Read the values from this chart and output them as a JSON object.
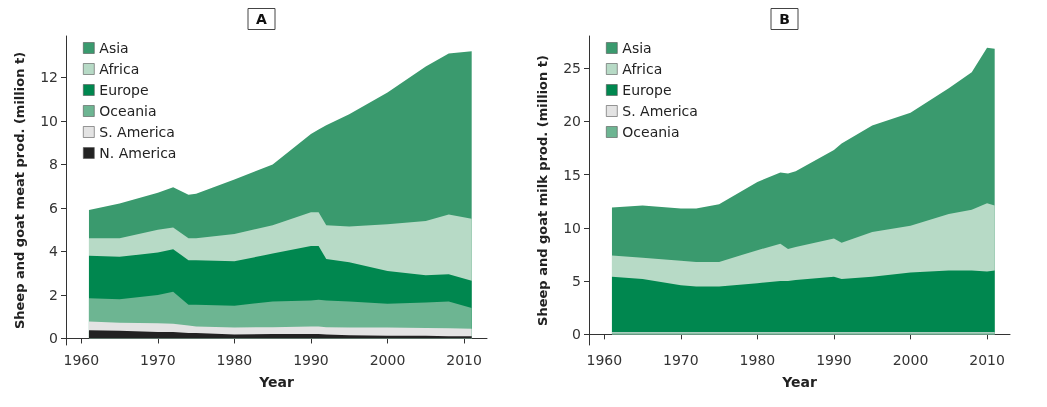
{
  "chart_data": [
    {
      "type": "area",
      "stacked": true,
      "title": "A",
      "xlabel": "Year",
      "ylabel": "Sheep and goat meat prod. (million t)",
      "legend": "top left",
      "grid": false,
      "xlim": [
        1958,
        2013
      ],
      "xticks": [
        1960,
        1970,
        1980,
        1990,
        2000,
        2010
      ],
      "ylim": [
        -0.3,
        13.9
      ],
      "yticks": [
        0,
        2,
        4,
        6,
        8,
        10,
        12
      ],
      "x": [
        1961,
        1965,
        1970,
        1972,
        1974,
        1975,
        1980,
        1985,
        1990,
        1991,
        1992,
        1995,
        2000,
        2005,
        2008,
        2011
      ],
      "series": [
        {
          "name": "N. America",
          "color": "#222222",
          "values": [
            0.38,
            0.35,
            0.3,
            0.3,
            0.25,
            0.25,
            0.18,
            0.2,
            0.2,
            0.2,
            0.18,
            0.15,
            0.12,
            0.12,
            0.1,
            0.1
          ]
        },
        {
          "name": "S. America",
          "color": "#e3e3e3",
          "values": [
            0.4,
            0.37,
            0.4,
            0.38,
            0.35,
            0.3,
            0.32,
            0.32,
            0.35,
            0.35,
            0.34,
            0.35,
            0.38,
            0.36,
            0.37,
            0.35
          ]
        },
        {
          "name": "Oceania",
          "color": "#6db592",
          "values": [
            1.07,
            1.08,
            1.3,
            1.47,
            0.95,
            1.0,
            1.0,
            1.18,
            1.2,
            1.23,
            1.23,
            1.2,
            1.1,
            1.17,
            1.23,
            0.95
          ]
        },
        {
          "name": "Europe",
          "color": "#00874f",
          "values": [
            1.95,
            1.95,
            1.95,
            1.95,
            2.05,
            2.05,
            2.05,
            2.2,
            2.5,
            2.47,
            1.9,
            1.8,
            1.5,
            1.25,
            1.25,
            1.25
          ]
        },
        {
          "name": "Africa",
          "color": "#b7dac6",
          "values": [
            0.8,
            0.85,
            1.05,
            1.0,
            1.0,
            1.0,
            1.25,
            1.3,
            1.55,
            1.55,
            1.55,
            1.65,
            2.15,
            2.5,
            2.75,
            2.85
          ]
        },
        {
          "name": "Asia",
          "color": "#3a9a6e",
          "values": [
            1.3,
            1.6,
            1.7,
            1.85,
            2.0,
            2.05,
            2.5,
            2.8,
            3.6,
            3.8,
            4.6,
            5.15,
            6.05,
            7.1,
            7.4,
            7.7
          ]
        }
      ]
    },
    {
      "type": "area",
      "stacked": true,
      "title": "B",
      "xlabel": "Year",
      "ylabel": "Sheep and goat milk prod. (million t)",
      "legend": "top left",
      "grid": false,
      "xlim": [
        1958,
        2013
      ],
      "xticks": [
        1960,
        1970,
        1980,
        1990,
        2000,
        2010
      ],
      "ylim": [
        -1,
        28
      ],
      "yticks": [
        0,
        5,
        10,
        15,
        20,
        25
      ],
      "x": [
        1961,
        1965,
        1970,
        1972,
        1975,
        1980,
        1983,
        1984,
        1985,
        1990,
        1991,
        1995,
        2000,
        2005,
        2008,
        2010,
        2011
      ],
      "series": [
        {
          "name": "Oceania",
          "color": "#6db592",
          "values": [
            0.1,
            0.1,
            0.1,
            0.1,
            0.1,
            0.1,
            0.1,
            0.1,
            0.1,
            0.1,
            0.1,
            0.1,
            0.1,
            0.1,
            0.1,
            0.1,
            0.1
          ]
        },
        {
          "name": "S. America",
          "color": "#e3e3e3",
          "values": [
            0.1,
            0.1,
            0.1,
            0.1,
            0.1,
            0.1,
            0.1,
            0.1,
            0.1,
            0.1,
            0.1,
            0.1,
            0.1,
            0.1,
            0.1,
            0.1,
            0.1
          ]
        },
        {
          "name": "Europe",
          "color": "#00874f",
          "values": [
            5.2,
            5.0,
            4.4,
            4.3,
            4.3,
            4.6,
            4.8,
            4.8,
            4.9,
            5.2,
            5.0,
            5.2,
            5.6,
            5.8,
            5.8,
            5.7,
            5.8
          ]
        },
        {
          "name": "Africa",
          "color": "#b7dac6",
          "values": [
            2.0,
            2.0,
            2.3,
            2.3,
            2.3,
            3.1,
            3.5,
            3.0,
            3.1,
            3.6,
            3.4,
            4.2,
            4.4,
            5.3,
            5.7,
            6.4,
            6.1
          ]
        },
        {
          "name": "Asia",
          "color": "#3a9a6e",
          "values": [
            4.5,
            4.9,
            4.9,
            5.0,
            5.4,
            6.4,
            6.7,
            7.1,
            7.1,
            8.3,
            9.3,
            10.0,
            10.6,
            11.8,
            12.9,
            14.6,
            14.7
          ]
        }
      ]
    }
  ]
}
